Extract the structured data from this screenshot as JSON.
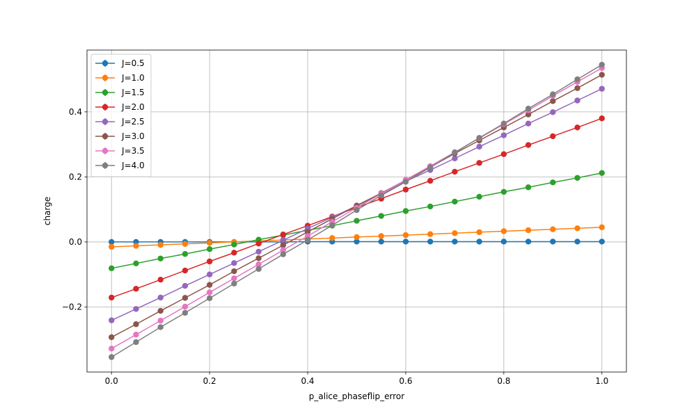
{
  "chart_data": {
    "type": "line",
    "title": "",
    "xlabel": "p_alice_phaseflip_error",
    "ylabel": "charge",
    "xlim": [
      -0.05,
      1.05
    ],
    "ylim": [
      -0.4,
      0.59
    ],
    "x_ticks": [
      0.0,
      0.2,
      0.4,
      0.6,
      0.8,
      1.0
    ],
    "x_tick_labels": [
      "0.0",
      "0.2",
      "0.4",
      "0.6",
      "0.8",
      "1.0"
    ],
    "y_ticks": [
      -0.2,
      0.0,
      0.2,
      0.4
    ],
    "y_tick_labels": [
      "−0.2",
      "0.0",
      "0.2",
      "0.4"
    ],
    "grid": true,
    "legend_position": "upper-left",
    "markers": "circle",
    "error_bars": true,
    "x": [
      0.0,
      0.05,
      0.1,
      0.15,
      0.2,
      0.25,
      0.3,
      0.35,
      0.4,
      0.45,
      0.5,
      0.55,
      0.6,
      0.65,
      0.7,
      0.75,
      0.8,
      0.85,
      0.9,
      0.95,
      1.0
    ],
    "series": [
      {
        "name": "J=0.5",
        "color": "#1f77b4",
        "values": [
          0.0,
          0.0,
          0.0,
          0.0,
          0.0,
          0.0,
          0.0,
          0.0,
          0.001,
          0.001,
          0.001,
          0.001,
          0.001,
          0.001,
          0.001,
          0.001,
          0.001,
          0.001,
          0.001,
          0.001,
          0.001
        ]
      },
      {
        "name": "J=1.0",
        "color": "#ff7f0e",
        "values": [
          -0.015,
          -0.012,
          -0.009,
          -0.006,
          -0.003,
          0.0,
          0.003,
          0.006,
          0.009,
          0.012,
          0.015,
          0.018,
          0.021,
          0.024,
          0.027,
          0.03,
          0.033,
          0.036,
          0.039,
          0.042,
          0.045
        ]
      },
      {
        "name": "J=1.5",
        "color": "#2ca02c",
        "values": [
          -0.081,
          -0.066,
          -0.051,
          -0.037,
          -0.022,
          -0.008,
          0.007,
          0.021,
          0.036,
          0.05,
          0.065,
          0.08,
          0.095,
          0.109,
          0.124,
          0.139,
          0.154,
          0.168,
          0.183,
          0.197,
          0.212
        ]
      },
      {
        "name": "J=2.0",
        "color": "#d62728",
        "values": [
          -0.171,
          -0.144,
          -0.116,
          -0.088,
          -0.06,
          -0.033,
          -0.005,
          0.023,
          0.05,
          0.078,
          0.106,
          0.133,
          0.161,
          0.188,
          0.216,
          0.243,
          0.27,
          0.298,
          0.325,
          0.352,
          0.38
        ]
      },
      {
        "name": "J=2.5",
        "color": "#9467bd",
        "values": [
          -0.241,
          -0.206,
          -0.171,
          -0.135,
          -0.1,
          -0.065,
          -0.03,
          0.005,
          0.041,
          0.076,
          0.111,
          0.147,
          0.186,
          0.221,
          0.257,
          0.293,
          0.328,
          0.364,
          0.399,
          0.435,
          0.471
        ]
      },
      {
        "name": "J=3.0",
        "color": "#8c564b",
        "values": [
          -0.293,
          -0.253,
          -0.212,
          -0.172,
          -0.132,
          -0.09,
          -0.05,
          -0.01,
          0.031,
          0.071,
          0.112,
          0.15,
          0.19,
          0.23,
          0.272,
          0.312,
          0.352,
          0.392,
          0.433,
          0.473,
          0.514
        ]
      },
      {
        "name": "J=3.5",
        "color": "#e377c2",
        "values": [
          -0.328,
          -0.285,
          -0.242,
          -0.199,
          -0.155,
          -0.112,
          -0.069,
          -0.025,
          0.018,
          0.062,
          0.105,
          0.148,
          0.191,
          0.233,
          0.276,
          0.319,
          0.362,
          0.405,
          0.449,
          0.492,
          0.535
        ]
      },
      {
        "name": "J=4.0",
        "color": "#7f7f7f",
        "values": [
          -0.354,
          -0.308,
          -0.262,
          -0.218,
          -0.173,
          -0.128,
          -0.083,
          -0.038,
          0.006,
          0.051,
          0.098,
          0.143,
          0.185,
          0.229,
          0.275,
          0.32,
          0.364,
          0.41,
          0.454,
          0.5,
          0.545
        ]
      }
    ]
  }
}
